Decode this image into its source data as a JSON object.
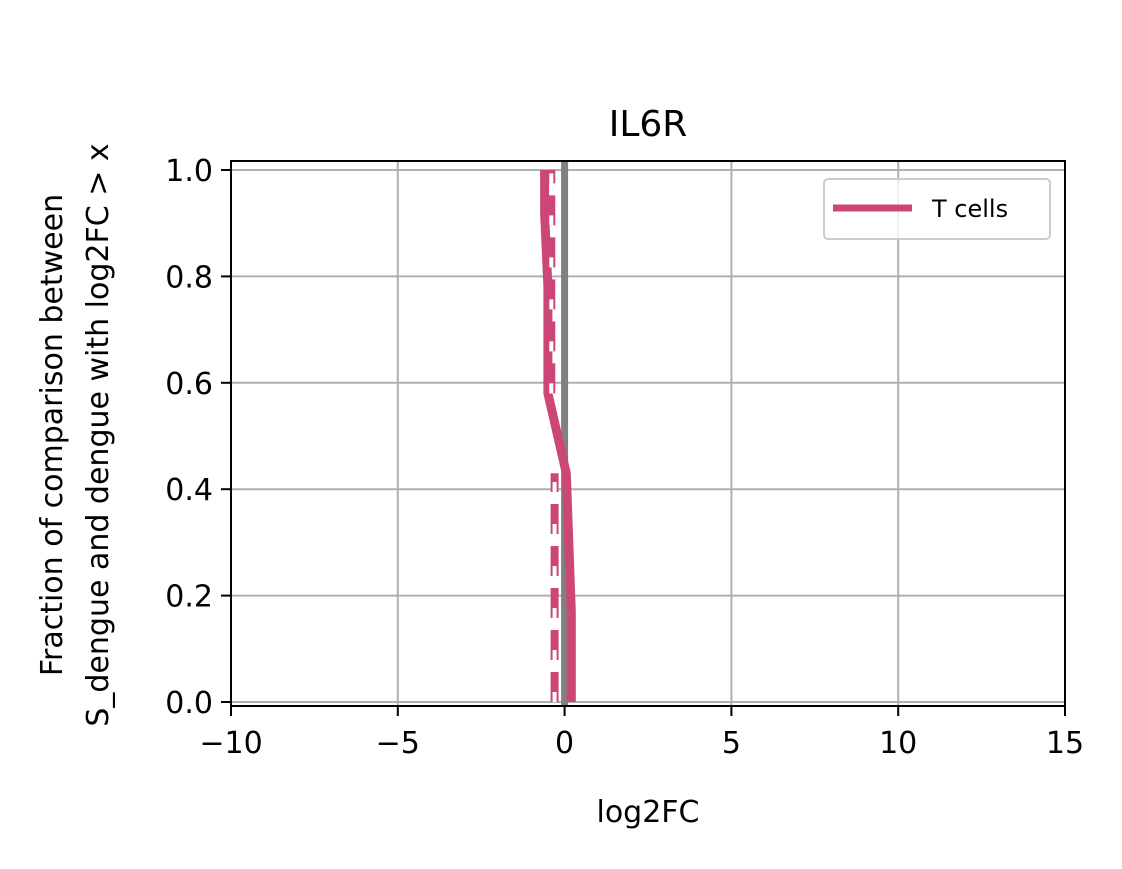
{
  "chart_data": {
    "type": "line",
    "title": "IL6R",
    "xlabel": "log2FC",
    "ylabel_lines": [
      "Fraction of comparison between",
      "S_dengue and dengue with log2FC > x"
    ],
    "xlim": [
      -10,
      15
    ],
    "ylim": [
      0,
      1
    ],
    "xticks": [
      -10,
      -5,
      0,
      5,
      10,
      15
    ],
    "xtick_labels": [
      "−10",
      "−5",
      "0",
      "5",
      "10",
      "15"
    ],
    "yticks": [
      0,
      0.2,
      0.4,
      0.6,
      0.8,
      1.0
    ],
    "ytick_labels": [
      "0.0",
      "0.2",
      "0.4",
      "0.6",
      "0.8",
      "1.0"
    ],
    "grid": true,
    "legend_position": "top-right",
    "reference_line": {
      "x": 0,
      "color": "#808080"
    },
    "series": [
      {
        "name": "T cells",
        "color": "#cc4778",
        "style": "solid",
        "points": [
          [
            0.2,
            0
          ],
          [
            0.2,
            0.17
          ],
          [
            0.05,
            0.43
          ],
          [
            -0.5,
            0.58
          ],
          [
            -0.5,
            0.78
          ],
          [
            -0.6,
            0.92
          ],
          [
            -0.6,
            1.0
          ]
        ]
      },
      {
        "color": "#cc4778",
        "style": "dashed",
        "points": [
          [
            -0.3,
            0
          ],
          [
            -0.3,
            0.43
          ]
        ]
      },
      {
        "color": "#cc4778",
        "style": "dashed",
        "points": [
          [
            -0.4,
            0.58
          ],
          [
            -0.4,
            1.0
          ]
        ]
      }
    ]
  }
}
